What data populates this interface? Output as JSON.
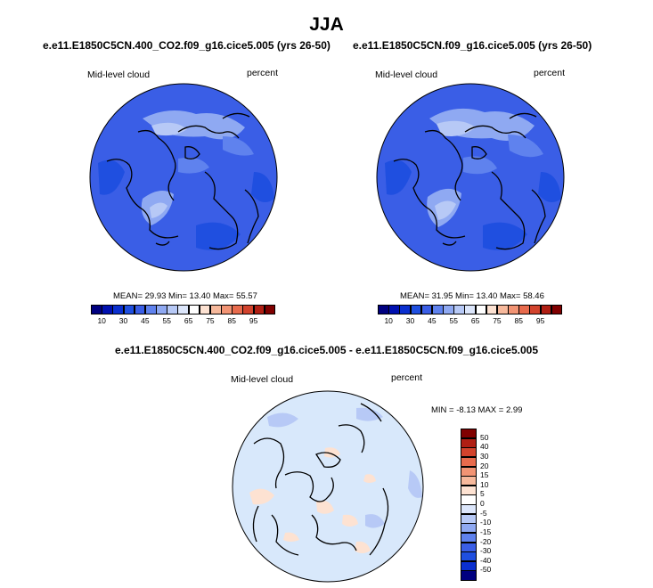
{
  "title": "JJA",
  "panel_a": {
    "title": "e.e11.E1850C5CN.400_CO2.f09_g16.cice5.005 (yrs 26-50)",
    "field": "Mid-level cloud",
    "units": "percent",
    "stats": "MEAN=  29.93  Min=  13.40  Max=  55.57",
    "fill": "#3a5ee6"
  },
  "panel_b": {
    "title": "e.e11.E1850C5CN.f09_g16.cice5.005 (yrs 26-50)",
    "field": "Mid-level cloud",
    "units": "percent",
    "stats": "MEAN=  31.95  Min=  13.40  Max=  58.46",
    "fill": "#3a5ee6"
  },
  "panel_c": {
    "title": "e.e11.E1850C5CN.400_CO2.f09_g16.cice5.005 - e.e11.E1850C5CN.f09_g16.cice5.005",
    "field": "Mid-level cloud",
    "units": "percent",
    "stats": "MIN = -8.13 MAX =   2.99",
    "fill": "#d8e8fb"
  },
  "colorbar_abs": {
    "colors": [
      "#000080",
      "#0010b0",
      "#0a2fcf",
      "#1f4fe0",
      "#3a5ee6",
      "#5f82ee",
      "#8fa9f2",
      "#b7c9f6",
      "#dce6fb",
      "#ffffff",
      "#fde2d2",
      "#f7b99c",
      "#f29474",
      "#e86b4d",
      "#d2432d",
      "#b01f14",
      "#800000"
    ],
    "labels": [
      "10",
      "30",
      "45",
      "55",
      "65",
      "75",
      "85",
      "95"
    ],
    "label_positions": [
      1,
      3,
      5,
      7,
      9,
      11,
      13,
      15
    ]
  },
  "colorbar_diff": {
    "colors": [
      "#800000",
      "#b01f14",
      "#d2432d",
      "#e86b4d",
      "#f29474",
      "#f7b99c",
      "#fde2d2",
      "#ffffff",
      "#dce6fb",
      "#b7c9f6",
      "#8fa9f2",
      "#5f82ee",
      "#3a5ee6",
      "#1f4fe0",
      "#0a2fcf",
      "#000080"
    ],
    "labels": [
      "50",
      "40",
      "30",
      "20",
      "15",
      "10",
      "5",
      "0",
      "-5",
      "-10",
      "-15",
      "-20",
      "-30",
      "-40",
      "-50"
    ]
  }
}
